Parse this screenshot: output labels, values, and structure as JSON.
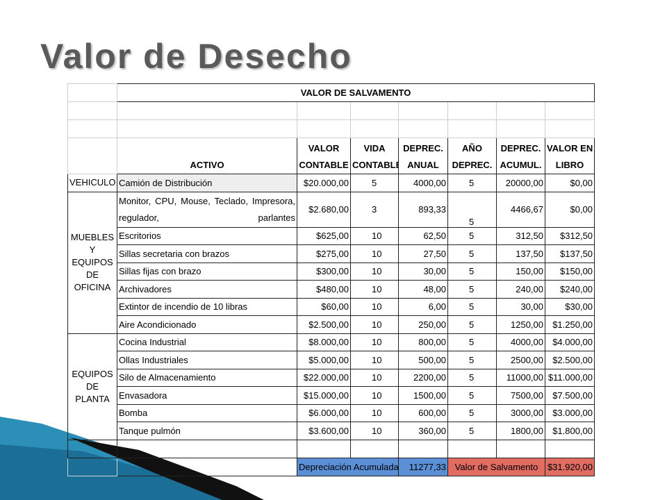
{
  "title": "Valor de Desecho",
  "table": {
    "caption": "VALOR DE SALVAMENTO",
    "columns": [
      [
        "ACTIVO"
      ],
      [
        "VALOR",
        "CONTABLE"
      ],
      [
        "VIDA",
        "CONTABLE"
      ],
      [
        "DEPREC.",
        "ANUAL"
      ],
      [
        "AÑO",
        "DEPREC."
      ],
      [
        "DEPREC.",
        "ACUMUL."
      ],
      [
        "VALOR EN",
        "LIBRO"
      ]
    ],
    "groups": [
      {
        "name": [
          "VEHICULO"
        ],
        "rows": [
          [
            "Camión de Distribución",
            "$20.000,00",
            "5",
            "4000,00",
            "5",
            "20000,00",
            "$0,00"
          ]
        ]
      },
      {
        "name": [
          "MUEBLES",
          "Y EQUIPOS",
          "DE OFICINA"
        ],
        "rows": [
          [
            "Monitor, CPU, Mouse, Teclado, Impresora, regulador, parlantes",
            "$2.680,00",
            "3",
            "893,33",
            "5",
            "4466,67",
            "$0,00"
          ],
          [
            "Escritorios",
            "$625,00",
            "10",
            "62,50",
            "5",
            "312,50",
            "$312,50"
          ],
          [
            "Sillas secretaria con brazos",
            "$275,00",
            "10",
            "27,50",
            "5",
            "137,50",
            "$137,50"
          ],
          [
            "Sillas fijas con brazo",
            "$300,00",
            "10",
            "30,00",
            "5",
            "150,00",
            "$150,00"
          ],
          [
            "Archivadores",
            "$480,00",
            "10",
            "48,00",
            "5",
            "240,00",
            "$240,00"
          ],
          [
            "Extintor de incendio de 10 libras",
            "$60,00",
            "10",
            "6,00",
            "5",
            "30,00",
            "$30,00"
          ],
          [
            "Aire Acondicionado",
            "$2.500,00",
            "10",
            "250,00",
            "5",
            "1250,00",
            "$1.250,00"
          ]
        ]
      },
      {
        "name": [
          "EQUIPOS",
          "DE PLANTA"
        ],
        "rows": [
          [
            "Cocina Industrial",
            "$8.000,00",
            "10",
            "800,00",
            "5",
            "4000,00",
            "$4.000,00"
          ],
          [
            "Ollas Industriales",
            "$5.000,00",
            "10",
            "500,00",
            "5",
            "2500,00",
            "$2.500,00"
          ],
          [
            "Silo de Almacenamiento",
            "$22.000,00",
            "10",
            "2200,00",
            "5",
            "11000,00",
            "$11.000,00"
          ],
          [
            "Envasadora",
            "$15.000,00",
            "10",
            "1500,00",
            "5",
            "7500,00",
            "$7.500,00"
          ],
          [
            "Bomba",
            "$6.000,00",
            "10",
            "600,00",
            "5",
            "3000,00",
            "$3.000,00"
          ],
          [
            "Tanque pulmón",
            "$3.600,00",
            "10",
            "360,00",
            "5",
            "1800,00",
            "$1.800,00"
          ]
        ]
      }
    ],
    "footer": {
      "accumulated_label": "Depreciación Acumulada",
      "accumulated_value": "11277,33",
      "salvage_label": "Valor de Salvamento",
      "salvage_value": "$31.920,00"
    }
  }
}
